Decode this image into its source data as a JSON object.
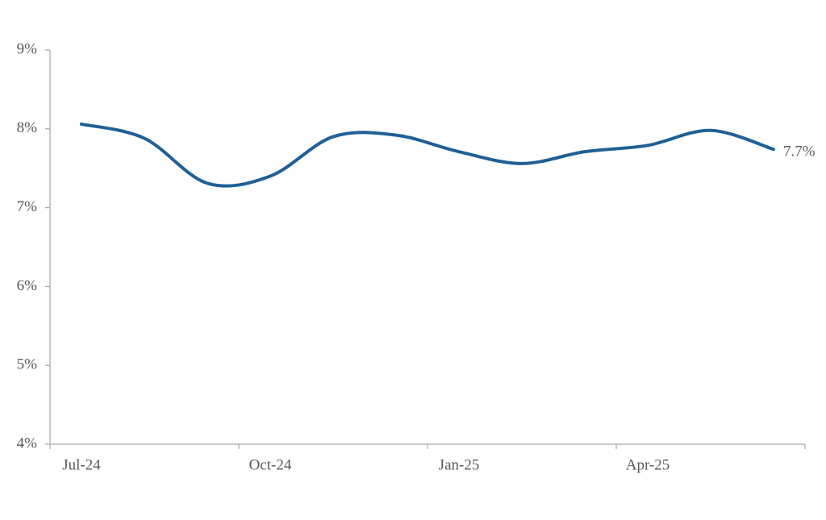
{
  "chart_data": {
    "type": "line",
    "categories": [
      "Jul-24",
      null,
      null,
      "Oct-24",
      null,
      null,
      "Jan-25",
      null,
      null,
      "Apr-25",
      null,
      null
    ],
    "series": [
      {
        "color": "#1f6096",
        "values": [
          8.06,
          7.88,
          7.31,
          7.4,
          7.9,
          7.92,
          7.71,
          7.56,
          7.71,
          7.79,
          7.98,
          7.74
        ],
        "value_labels": [
          null,
          null,
          null,
          null,
          null,
          null,
          null,
          null,
          null,
          null,
          null,
          "7.7%"
        ]
      }
    ],
    "ylim": [
      4,
      9
    ],
    "yticks": [
      {
        "value": 4,
        "label": "4%"
      },
      {
        "value": 5,
        "label": "5%"
      },
      {
        "value": 6,
        "label": "6%"
      },
      {
        "value": 7,
        "label": "7%"
      },
      {
        "value": 8,
        "label": "8%"
      },
      {
        "value": 9,
        "label": "9%"
      }
    ],
    "grid": false
  }
}
